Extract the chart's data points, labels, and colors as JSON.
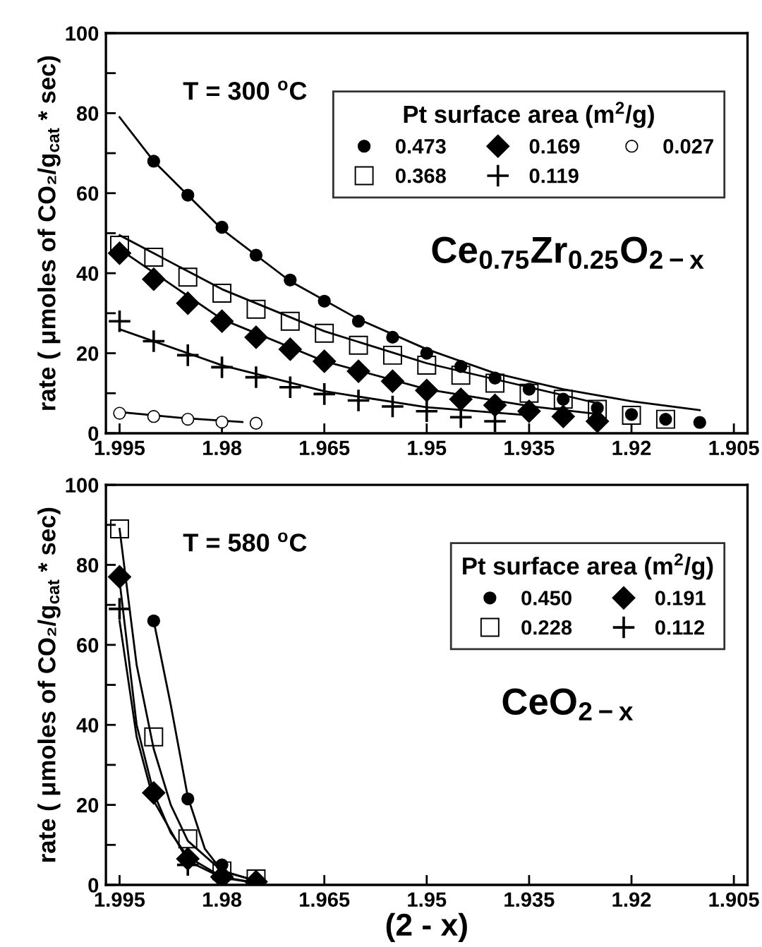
{
  "chart_data": [
    {
      "type": "scatter",
      "ylabel": "rate ( μmoles of CO₂/g$_{cat}$ * sec)",
      "legend_title": "Pt surface area (m$^{2}$/g)",
      "annotations": [
        "T = 300 $^{o}$C",
        "Ce$_{0.75}$Zr$_{0.25}$O$_{2−x}$"
      ],
      "xlim": [
        1.997,
        1.903
      ],
      "xticks": [
        1.995,
        1.98,
        1.965,
        1.95,
        1.935,
        1.92,
        1.905
      ],
      "ylim": [
        0,
        100
      ],
      "yticks": [
        0,
        {
          "value": 10,
          "label": null
        },
        20,
        {
          "value": 30,
          "label": null
        },
        40,
        {
          "value": 50,
          "label": null
        },
        60,
        {
          "value": 70,
          "label": null
        },
        80,
        {
          "value": 90,
          "label": null
        },
        100
      ],
      "grid": false,
      "legend": "top right",
      "series": [
        {
          "name": "0.473",
          "marker": "circle",
          "color": "#000000",
          "x": [
            1.99,
            1.985,
            1.98,
            1.975,
            1.97,
            1.965,
            1.96,
            1.955,
            1.95,
            1.945,
            1.94,
            1.935,
            1.93,
            1.925,
            1.92,
            1.915,
            1.91
          ],
          "values": [
            68,
            59.5,
            51.5,
            44.5,
            38.3,
            33,
            28,
            24,
            20,
            16.7,
            13.8,
            11,
            8.5,
            6.3,
            4.7,
            3.5,
            2.7
          ]
        },
        {
          "name": "0.368",
          "marker": "square",
          "color": "#000000",
          "x": [
            1.995,
            1.99,
            1.985,
            1.98,
            1.975,
            1.97,
            1.965,
            1.96,
            1.955,
            1.95,
            1.945,
            1.94,
            1.935,
            1.93,
            1.925,
            1.92,
            1.915
          ],
          "values": [
            47,
            44,
            39,
            35,
            31,
            28,
            25,
            22,
            19.5,
            17,
            14.5,
            12.5,
            10,
            8.5,
            6,
            4.5,
            3.5
          ]
        },
        {
          "name": "0.169",
          "marker": "diamond",
          "color": "#000000",
          "x": [
            1.995,
            1.99,
            1.985,
            1.98,
            1.975,
            1.97,
            1.965,
            1.96,
            1.955,
            1.95,
            1.945,
            1.94,
            1.935,
            1.93,
            1.925
          ],
          "values": [
            45,
            38.5,
            32.5,
            28,
            24,
            21,
            18,
            15.5,
            13,
            10.7,
            8.5,
            7,
            5.5,
            4.2,
            3
          ]
        },
        {
          "name": "0.119",
          "marker": "cross",
          "color": "#000000",
          "x": [
            1.995,
            1.99,
            1.985,
            1.98,
            1.975,
            1.97,
            1.965,
            1.96,
            1.955,
            1.95,
            1.945,
            1.94
          ],
          "values": [
            28,
            23,
            19.5,
            16.5,
            14,
            11.5,
            9.8,
            8.2,
            6.7,
            5.5,
            4,
            3
          ]
        },
        {
          "name": "0.027",
          "marker": "circle",
          "color": "#ffffff",
          "x": [
            1.995,
            1.99,
            1.985,
            1.98,
            1.975
          ],
          "values": [
            5,
            4.2,
            3.5,
            2.8,
            2.5
          ]
        },
        {
          "type": "line",
          "color": "#000000",
          "x": [
            1.995,
            1.99,
            1.98,
            1.97,
            1.96,
            1.95,
            1.94,
            1.93,
            1.92,
            1.91
          ],
          "values": [
            79,
            68,
            51,
            38,
            28.5,
            21,
            15,
            11,
            8,
            5.8
          ]
        },
        {
          "type": "line",
          "color": "#000000",
          "x": [
            1.995,
            1.98,
            1.965,
            1.95,
            1.935,
            1.925
          ],
          "values": [
            49.5,
            36,
            25.5,
            17.5,
            11.5,
            7.5
          ]
        },
        {
          "type": "line",
          "color": "#000000",
          "x": [
            1.995,
            1.98,
            1.965,
            1.95,
            1.935,
            1.925
          ],
          "values": [
            46,
            28.5,
            18,
            11,
            6.8,
            4.8
          ]
        },
        {
          "type": "line",
          "color": "#000000",
          "x": [
            1.995,
            1.98,
            1.965,
            1.95,
            1.935
          ],
          "values": [
            26,
            17,
            10.5,
            6.5,
            4.5
          ]
        },
        {
          "type": "line",
          "color": "#000000",
          "x": [
            1.995,
            1.985,
            1.977
          ],
          "values": [
            5.3,
            3.7,
            2.8
          ]
        }
      ]
    },
    {
      "type": "scatter",
      "xlabel": "(2 - x)",
      "ylabel": "rate ( μmoles of CO₂/g$_{cat}$ * sec)",
      "legend_title": "Pt surface area (m$^{2}$/g)",
      "annotations": [
        "T = 580 $^{o}$C",
        "CeO$_{2−x}$"
      ],
      "xlim": [
        1.997,
        1.903
      ],
      "xticks": [
        1.995,
        1.98,
        1.965,
        1.95,
        1.935,
        1.92,
        1.905
      ],
      "ylim": [
        0,
        100
      ],
      "yticks": [
        0,
        {
          "value": 10,
          "label": null
        },
        20,
        {
          "value": 30,
          "label": null
        },
        40,
        {
          "value": 50,
          "label": null
        },
        60,
        {
          "value": 70,
          "label": null
        },
        80,
        {
          "value": 90,
          "label": null
        },
        100
      ],
      "grid": false,
      "legend": "top right",
      "series": [
        {
          "name": "0.450",
          "marker": "circle",
          "color": "#000000",
          "x": [
            1.99,
            1.985,
            1.98
          ],
          "values": [
            66,
            21.5,
            5
          ]
        },
        {
          "name": "0.228",
          "marker": "square",
          "color": "#000000",
          "x": [
            1.995,
            1.99,
            1.985,
            1.98,
            1.975
          ],
          "values": [
            89,
            37,
            11.5,
            3.5,
            1.5
          ]
        },
        {
          "name": "0.191",
          "marker": "diamond",
          "color": "#000000",
          "x": [
            1.995,
            1.99,
            1.985,
            1.98,
            1.975
          ],
          "values": [
            77,
            23,
            6.5,
            2,
            0.8
          ]
        },
        {
          "name": "0.112",
          "marker": "cross",
          "color": "#000000",
          "x": [
            1.995,
            1.985,
            1.98
          ],
          "values": [
            69,
            5,
            2
          ]
        },
        {
          "type": "line",
          "color": "#000000",
          "x": [
            1.99,
            1.9875,
            1.985,
            1.9825,
            1.98,
            1.975
          ],
          "values": [
            66,
            45,
            22,
            9,
            3.5,
            1
          ]
        },
        {
          "type": "line",
          "color": "#000000",
          "x": [
            1.995,
            1.9925,
            1.99,
            1.9875,
            1.985,
            1.98,
            1.975
          ],
          "values": [
            89,
            55,
            34,
            20,
            11,
            3.5,
            1
          ]
        },
        {
          "type": "line",
          "color": "#000000",
          "x": [
            1.995,
            1.9925,
            1.99,
            1.9875,
            1.985,
            1.98,
            1.975
          ],
          "values": [
            76,
            40,
            23,
            13,
            7,
            2,
            0.5
          ]
        },
        {
          "type": "line",
          "color": "#000000",
          "x": [
            1.995,
            1.9925,
            1.99,
            1.985,
            1.98,
            1.975
          ],
          "values": [
            66,
            37,
            21,
            6,
            1.8,
            0.5
          ]
        }
      ]
    }
  ]
}
